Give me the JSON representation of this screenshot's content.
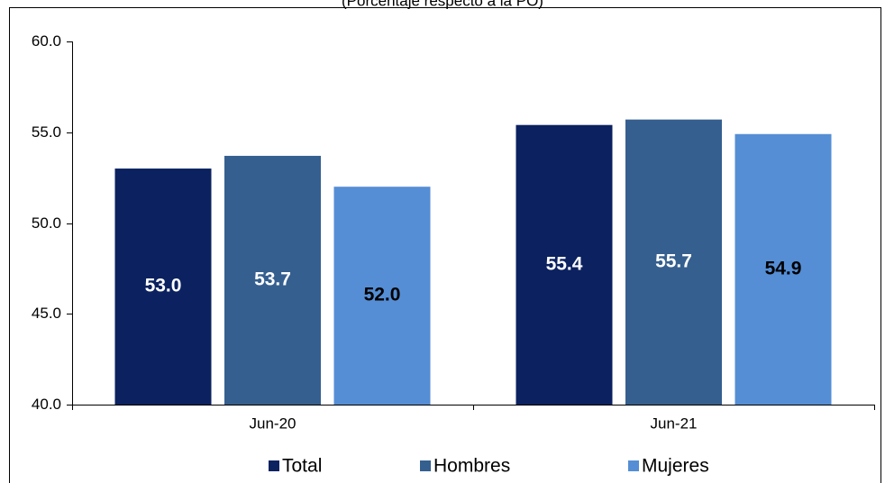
{
  "chart_data": {
    "type": "bar",
    "subtitle": "(Porcentaje respecto a la PO)",
    "categories": [
      "Jun-20",
      "Jun-21"
    ],
    "series": [
      {
        "name": "Total",
        "color": "#0b2160",
        "values": [
          53.0,
          55.4
        ],
        "value_labels": [
          "53.0",
          "55.4"
        ],
        "label_color": "#ffffff"
      },
      {
        "name": "Hombres",
        "color": "#355f8f",
        "values": [
          53.7,
          55.7
        ],
        "value_labels": [
          "53.7",
          "55.7"
        ],
        "label_color": "#ffffff"
      },
      {
        "name": "Mujeres",
        "color": "#558ed5",
        "values": [
          52.0,
          54.9
        ],
        "value_labels": [
          "52.0",
          "54.9"
        ],
        "label_color": "#000000"
      }
    ],
    "ylim": [
      40,
      60
    ],
    "yticks": [
      {
        "value": 40,
        "label": "40.0"
      },
      {
        "value": 45,
        "label": "45.0"
      },
      {
        "value": 50,
        "label": "50.0"
      },
      {
        "value": 55,
        "label": "55.0"
      },
      {
        "value": 60,
        "label": "60.0"
      }
    ],
    "grid": false,
    "legend": "bottom"
  }
}
